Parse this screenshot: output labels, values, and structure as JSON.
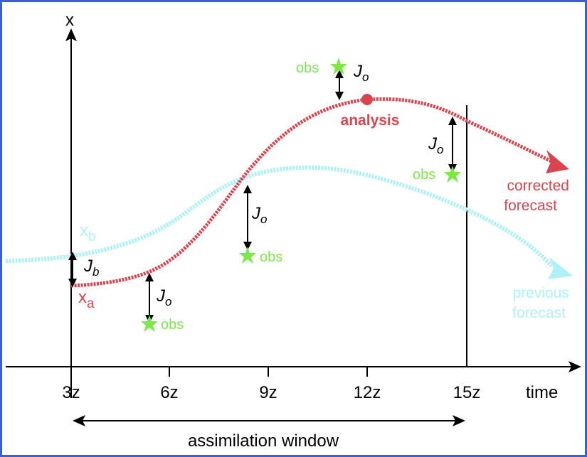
{
  "axes": {
    "y_label": "x",
    "x_label": "time",
    "ticks": [
      "3z",
      "6z",
      "9z",
      "12z",
      "15z"
    ]
  },
  "window": {
    "label": "assimilation window"
  },
  "curves": {
    "background": {
      "label": "x",
      "subscript": "b",
      "color": "#aef1f7"
    },
    "analysis": {
      "label": "x",
      "subscript": "a",
      "color": "#d9454f"
    }
  },
  "analysis_point": {
    "label": "analysis",
    "color": "#d9454f"
  },
  "cost_terms": {
    "jb_main": "J",
    "jb_sub": "b",
    "jo_main": "J",
    "jo_sub": "o"
  },
  "observations": {
    "label": "obs",
    "color": "#7ee84a"
  },
  "corrected_forecast": {
    "line1": "corrected",
    "line2": "forecast"
  },
  "previous_forecast": {
    "line1": "previous",
    "line2": "forecast"
  },
  "icons": {
    "obs": "star-icon"
  }
}
